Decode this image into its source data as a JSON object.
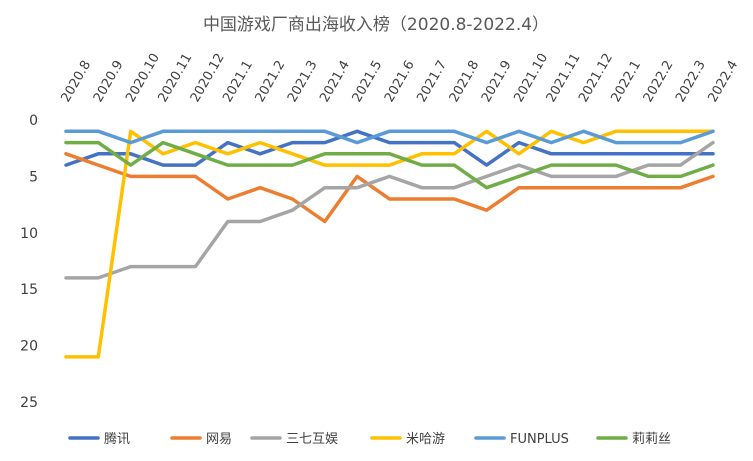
{
  "chart_data": {
    "type": "line",
    "title": "中国游戏厂商出海收入榜（2020.8-2022.4）",
    "xlabel": "",
    "ylabel": "",
    "categories": [
      "2020.8",
      "2020.9",
      "2020.10",
      "2020.11",
      "2020.12",
      "2021.1",
      "2021.2",
      "2021.3",
      "2021.4",
      "2021.5",
      "2021.6",
      "2021.7",
      "2021.8",
      "2021.9",
      "2021.10",
      "2021.11",
      "2021.12",
      "2022.1",
      "2022.2",
      "2022.3",
      "2022.4"
    ],
    "y_reversed": true,
    "ylim": [
      0,
      25
    ],
    "yticks": [
      0,
      5,
      10,
      15,
      20,
      25
    ],
    "grid": false,
    "legend_position": "bottom",
    "series": [
      {
        "name": "腾讯",
        "color": "#4472C4",
        "values": [
          4,
          3,
          3,
          4,
          4,
          2,
          3,
          2,
          2,
          1,
          2,
          2,
          2,
          4,
          2,
          3,
          3,
          3,
          3,
          3,
          3
        ]
      },
      {
        "name": "网易",
        "color": "#ED7D31",
        "values": [
          3,
          4,
          5,
          5,
          5,
          7,
          6,
          7,
          9,
          5,
          7,
          7,
          7,
          8,
          6,
          6,
          6,
          6,
          6,
          6,
          5
        ]
      },
      {
        "name": "三七互娱",
        "color": "#A5A5A5",
        "values": [
          14,
          14,
          13,
          13,
          13,
          9,
          9,
          8,
          6,
          6,
          5,
          6,
          6,
          5,
          4,
          5,
          5,
          5,
          4,
          4,
          2
        ]
      },
      {
        "name": "米哈游",
        "color": "#FFC000",
        "values": [
          21,
          21,
          1,
          3,
          2,
          3,
          2,
          3,
          4,
          4,
          4,
          3,
          3,
          1,
          3,
          1,
          2,
          1,
          1,
          1,
          1
        ]
      },
      {
        "name": "FUNPLUS",
        "color": "#5B9BD5",
        "values": [
          1,
          1,
          2,
          1,
          1,
          1,
          1,
          1,
          1,
          2,
          1,
          1,
          1,
          2,
          1,
          2,
          1,
          2,
          2,
          2,
          1
        ]
      },
      {
        "name": "莉莉丝",
        "color": "#70AD47",
        "values": [
          2,
          2,
          4,
          2,
          3,
          4,
          4,
          4,
          3,
          3,
          3,
          4,
          4,
          6,
          5,
          4,
          4,
          4,
          5,
          5,
          4
        ]
      }
    ]
  }
}
